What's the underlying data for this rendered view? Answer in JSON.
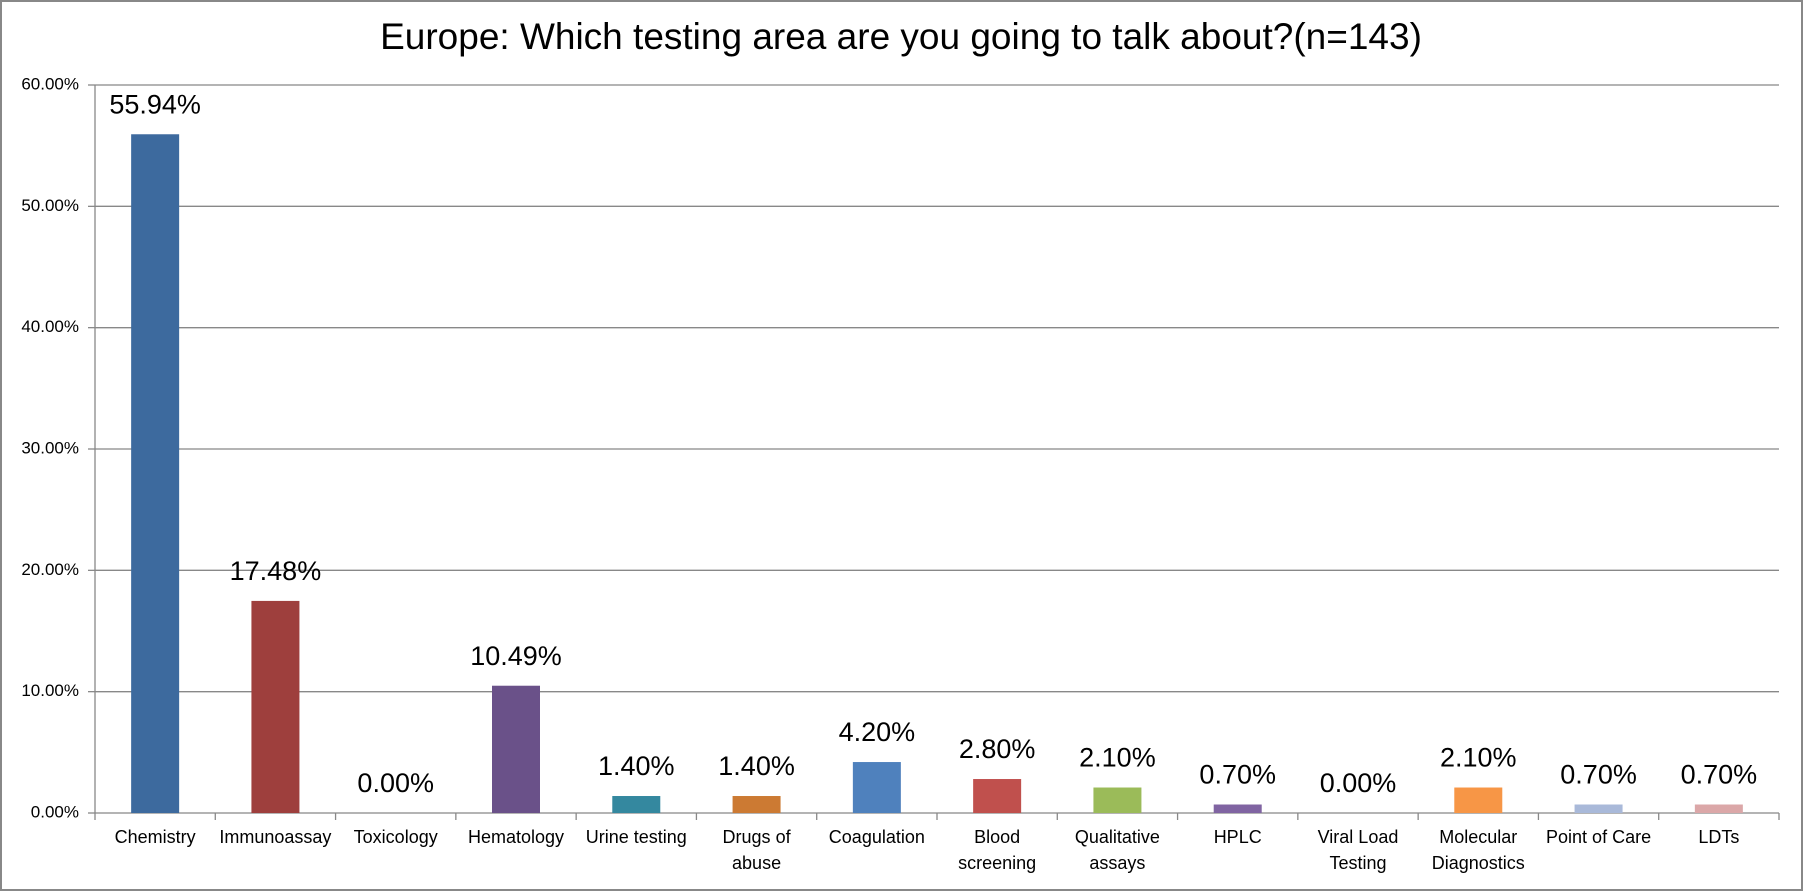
{
  "chart_data": {
    "type": "bar",
    "title": "Europe: Which testing area are you going to talk about?(n=143)",
    "categories": [
      "Chemistry",
      "Immunoassay",
      "Toxicology",
      "Hematology",
      "Urine testing",
      "Drugs of abuse",
      "Coagulation",
      "Blood screening",
      "Qualitative assays",
      "HPLC",
      "Viral Load Testing",
      "Molecular Diagnostics",
      "Point of Care",
      "LDTs"
    ],
    "values": [
      55.94,
      17.48,
      0,
      10.49,
      1.4,
      1.4,
      4.2,
      2.8,
      2.1,
      0.7,
      0,
      2.1,
      0.7,
      0.7
    ],
    "value_labels": [
      "55.94%",
      "17.48%",
      "0.00%",
      "10.49%",
      "1.40%",
      "1.40%",
      "4.20%",
      "2.80%",
      "2.10%",
      "0.70%",
      "0.00%",
      "2.10%",
      "0.70%",
      "0.70%"
    ],
    "colors": [
      "#3d6a9e",
      "#9e3f3d",
      "#4bacc6",
      "#6a5189",
      "#34889f",
      "#cc7a33",
      "#4f81bd",
      "#c0504d",
      "#9bbb59",
      "#8064a2",
      "#4bacc6",
      "#f79646",
      "#a9b9d9",
      "#dba7a8"
    ],
    "ylim": [
      0,
      60
    ],
    "yticks": [
      {
        "value": 0,
        "label": "0.00%"
      },
      {
        "value": 10,
        "label": "10.00%"
      },
      {
        "value": 20,
        "label": "20.00%"
      },
      {
        "value": 30,
        "label": "30.00%"
      },
      {
        "value": 40,
        "label": "40.00%"
      },
      {
        "value": 50,
        "label": "50.00%"
      },
      {
        "value": 60,
        "label": "60.00%"
      }
    ],
    "grid": true
  }
}
